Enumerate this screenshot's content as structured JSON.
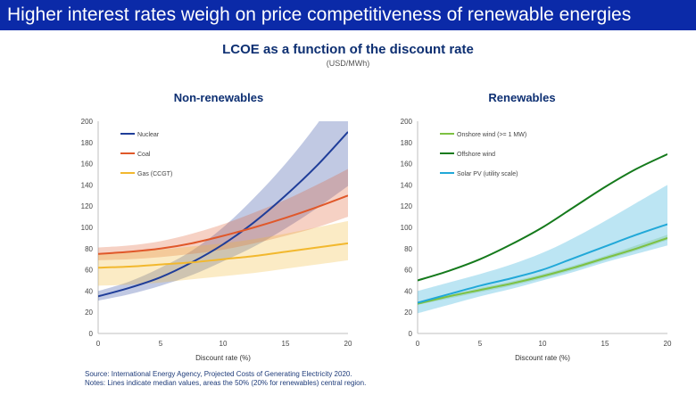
{
  "banner": {
    "title": "Higher interest rates weigh on price competitiveness of renewable energies"
  },
  "figure": {
    "title": "LCOE as a function of the discount rate",
    "units": "(USD/MWh)"
  },
  "notes": {
    "source": "Source: International Energy Agency, Projected Costs of Generating Electricity 2020.",
    "note": "Notes: Lines indicate median values, areas the 50% (20% for renewables) central region."
  },
  "colors": {
    "nuclear": "#1f3d99",
    "coal": "#e0582a",
    "gas": "#f2b82e",
    "onshore": "#7dc142",
    "offshore": "#157a1c",
    "solar": "#21a8d8"
  },
  "chart_data": [
    {
      "type": "line",
      "title": "Non-renewables",
      "xlabel": "Discount rate (%)",
      "ylabel": "",
      "xlim": [
        0,
        20
      ],
      "ylim": [
        0,
        200
      ],
      "xticks": [
        0,
        5,
        10,
        15,
        20
      ],
      "yticks": [
        0,
        20,
        40,
        60,
        80,
        100,
        120,
        140,
        160,
        180,
        200
      ],
      "grid": false,
      "legend": "top-left",
      "x": [
        0,
        2.5,
        5,
        7.5,
        10,
        12.5,
        15,
        17.5,
        20
      ],
      "series": [
        {
          "name": "Nuclear",
          "color": "#1f3d99",
          "values": [
            35,
            43,
            53,
            67,
            84,
            105,
            130,
            158,
            190
          ],
          "band_low": [
            31,
            37,
            45,
            55,
            68,
            82,
            99,
            118,
            139
          ],
          "band_high": [
            40,
            49,
            62,
            78,
            100,
            128,
            160,
            197,
            240
          ]
        },
        {
          "name": "Coal",
          "color": "#e0582a",
          "values": [
            75,
            77,
            80,
            85,
            92,
            100,
            109,
            119,
            130
          ],
          "band_low": [
            69,
            70,
            72,
            75,
            79,
            85,
            92,
            100,
            110
          ],
          "band_high": [
            81,
            83,
            87,
            94,
            103,
            114,
            126,
            140,
            155
          ]
        },
        {
          "name": "Gas (CCGT)",
          "color": "#f2b82e",
          "values": [
            62,
            63,
            65,
            67,
            70,
            73,
            77,
            81,
            85
          ],
          "band_low": [
            45,
            46,
            48,
            51,
            54,
            57,
            61,
            65,
            69
          ],
          "band_high": [
            75,
            77,
            79,
            82,
            85,
            89,
            94,
            100,
            106
          ]
        }
      ]
    },
    {
      "type": "line",
      "title": "Renewables",
      "xlabel": "Discount rate (%)",
      "ylabel": "",
      "xlim": [
        0,
        20
      ],
      "ylim": [
        0,
        200
      ],
      "xticks": [
        0,
        5,
        10,
        15,
        20
      ],
      "yticks": [
        0,
        20,
        40,
        60,
        80,
        100,
        120,
        140,
        160,
        180,
        200
      ],
      "grid": false,
      "legend": "top-left",
      "x": [
        0,
        2.5,
        5,
        7.5,
        10,
        12.5,
        15,
        17.5,
        20
      ],
      "series": [
        {
          "name": "Onshore wind (>= 1 MW)",
          "color": "#7dc142",
          "values": [
            28,
            35,
            41,
            47,
            54,
            62,
            71,
            80,
            90
          ],
          "band_low": [
            27,
            33,
            39,
            45,
            52,
            60,
            69,
            78,
            88
          ],
          "band_high": [
            30,
            36,
            43,
            49,
            56,
            64,
            73,
            83,
            93
          ]
        },
        {
          "name": "Offshore wind",
          "color": "#157a1c",
          "values": [
            50,
            59,
            70,
            84,
            100,
            119,
            138,
            155,
            169
          ]
        },
        {
          "name": "Solar PV (utility scale)",
          "color": "#21a8d8",
          "values": [
            29,
            37,
            45,
            52,
            60,
            71,
            82,
            93,
            103
          ],
          "band_low": [
            19,
            27,
            35,
            42,
            50,
            58,
            67,
            75,
            83
          ],
          "band_high": [
            40,
            48,
            56,
            65,
            76,
            90,
            106,
            123,
            140
          ]
        }
      ]
    }
  ]
}
